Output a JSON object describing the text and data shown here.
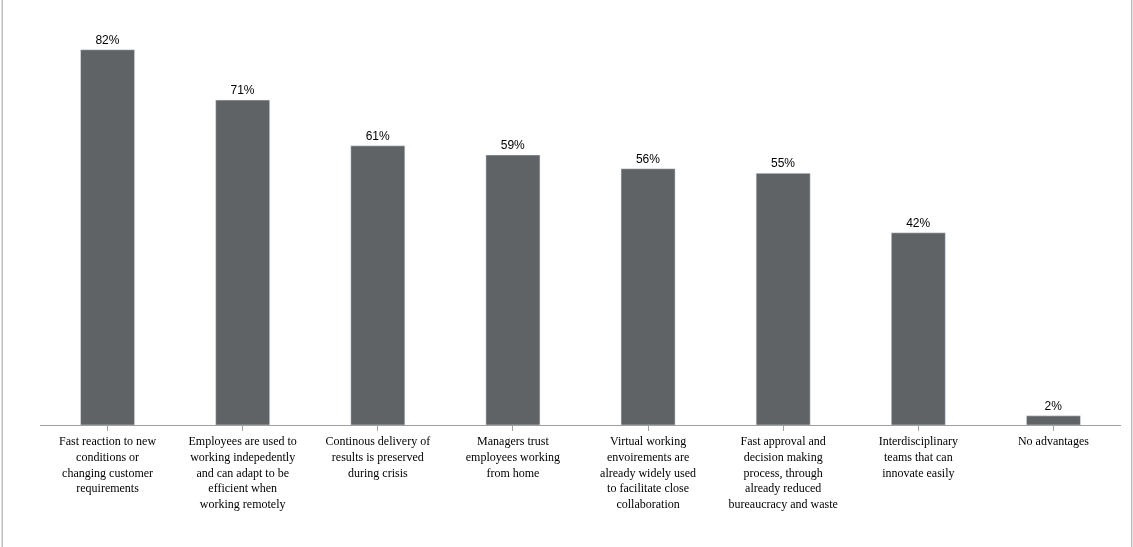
{
  "chart_data": {
    "type": "bar",
    "categories": [
      "Fast reaction to new conditions or changing customer requirements",
      "Employees are used to working indepedently and can adapt to be efficient when working remotely",
      "Continous delivery of results is preserved during crisis",
      "Managers trust employees working from home",
      "Virtual working envoirements are already widely used to facilitate close collaboration",
      "Fast approval and decision making process, through already reduced bureaucracy and waste",
      "Interdisciplinary teams that can innovate easily",
      "No advantages"
    ],
    "values": [
      82,
      71,
      61,
      59,
      56,
      55,
      42,
      2
    ],
    "value_labels": [
      "82%",
      "71%",
      "61%",
      "59%",
      "56%",
      "55%",
      "42%",
      "2%"
    ],
    "color": "#5f6366"
  }
}
